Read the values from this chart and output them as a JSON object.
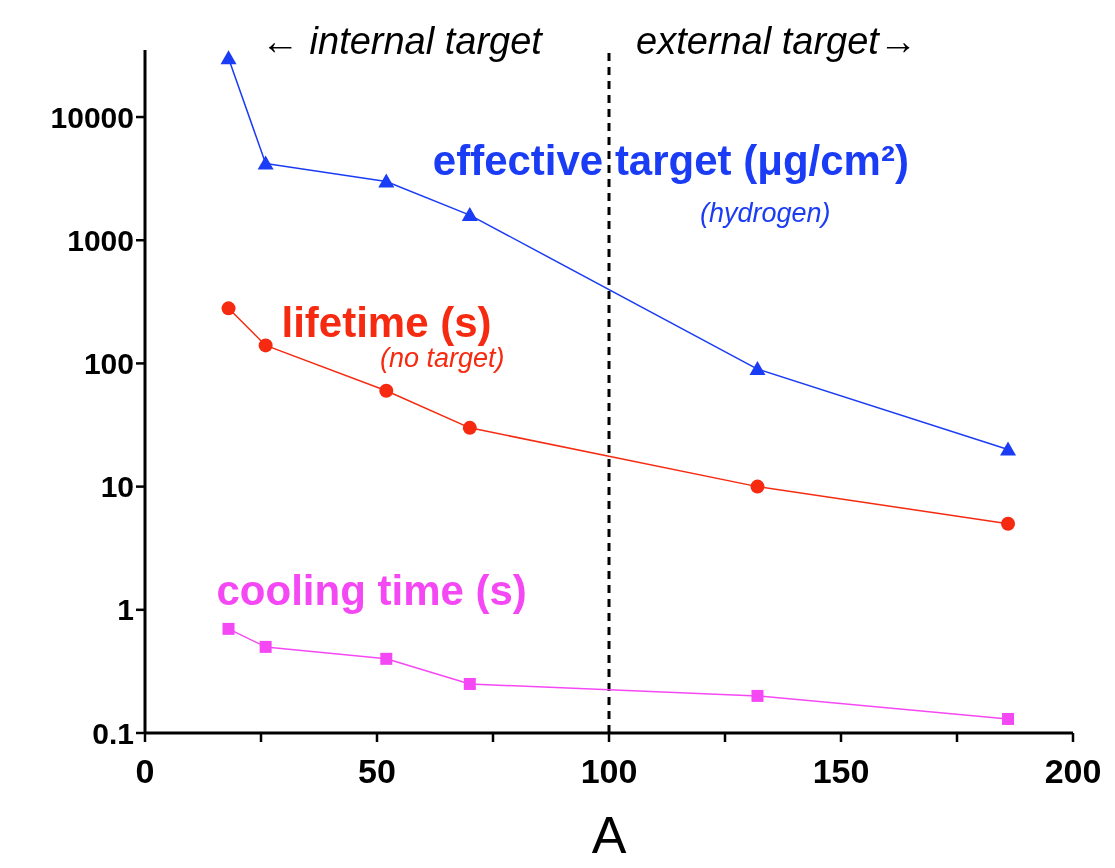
{
  "chart_data": {
    "type": "line",
    "xlabel": "A",
    "xlim": [
      0,
      200
    ],
    "xticks": [
      0,
      {
        "value": 25,
        "label": null
      },
      50,
      {
        "value": 75,
        "label": null
      },
      100,
      {
        "value": 125,
        "label": null
      },
      150,
      {
        "value": 175,
        "label": null
      },
      200
    ],
    "ylim": [
      0.1,
      35000
    ],
    "yticks": [
      0.1,
      1,
      10,
      100,
      1000,
      10000
    ],
    "log": "y",
    "grid": false,
    "legend": false,
    "x": [
      18,
      26,
      52,
      70,
      132,
      186
    ],
    "series": [
      {
        "name": "effective target (μg/cm²)",
        "color": "#1a3cf5",
        "marker": "triangle",
        "values": [
          30000,
          4200,
          3000,
          1600,
          90,
          20
        ]
      },
      {
        "name": "lifetime (s)",
        "color": "#f52a10",
        "marker": "circle",
        "values": [
          280,
          140,
          60,
          30,
          10,
          5
        ]
      },
      {
        "name": "cooling time (s)",
        "color": "#f548f5",
        "marker": "square",
        "values": [
          0.7,
          0.5,
          0.4,
          0.25,
          0.2,
          0.13
        ]
      }
    ],
    "ref_lines": [
      {
        "axis": "x",
        "value": 100,
        "color": "#000000",
        "line_style": "dashed"
      }
    ],
    "annotations": [
      "← internal target",
      "external target→",
      "(hydrogen)",
      "(no target)"
    ]
  }
}
